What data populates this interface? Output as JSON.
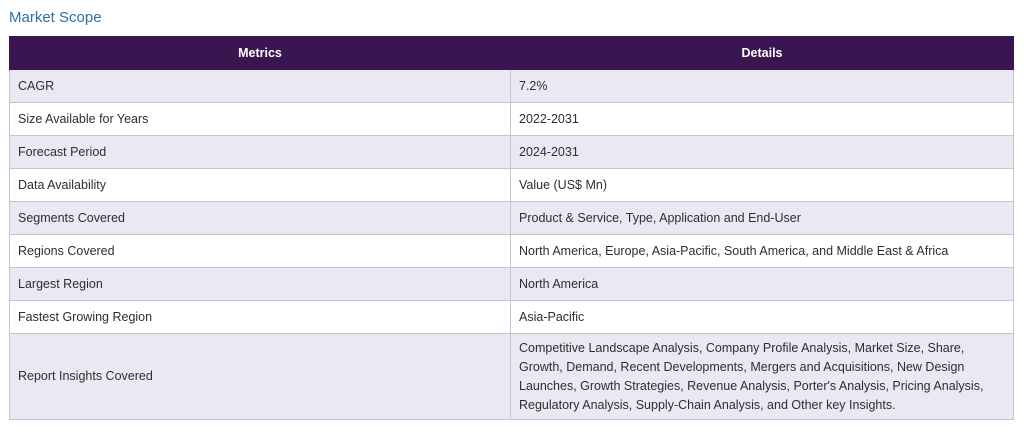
{
  "section": {
    "title": "Market Scope"
  },
  "table": {
    "headers": [
      "Metrics",
      "Details"
    ],
    "rows": [
      {
        "metric": "CAGR",
        "detail": "7.2%"
      },
      {
        "metric": "Size Available for Years",
        "detail": "2022-2031"
      },
      {
        "metric": "Forecast Period",
        "detail": "2024-2031"
      },
      {
        "metric": "Data Availability",
        "detail": "Value (US$ Mn)"
      },
      {
        "metric": "Segments Covered",
        "detail": "Product & Service, Type, Application and End-User"
      },
      {
        "metric": "Regions Covered",
        "detail": "North America, Europe, Asia-Pacific, South America, and Middle East & Africa"
      },
      {
        "metric": "Largest Region",
        "detail": "North America"
      },
      {
        "metric": "Fastest Growing Region",
        "detail": "Asia-Pacific"
      },
      {
        "metric": "Report Insights Covered",
        "detail": "Competitive Landscape Analysis, Company Profile Analysis, Market Size, Share, Growth, Demand, Recent Developments, Mergers and Acquisitions, New Design Launches, Growth Strategies, Revenue Analysis, Porter's Analysis, Pricing Analysis, Regulatory Analysis, Supply-Chain Analysis, and Other key Insights."
      }
    ]
  }
}
